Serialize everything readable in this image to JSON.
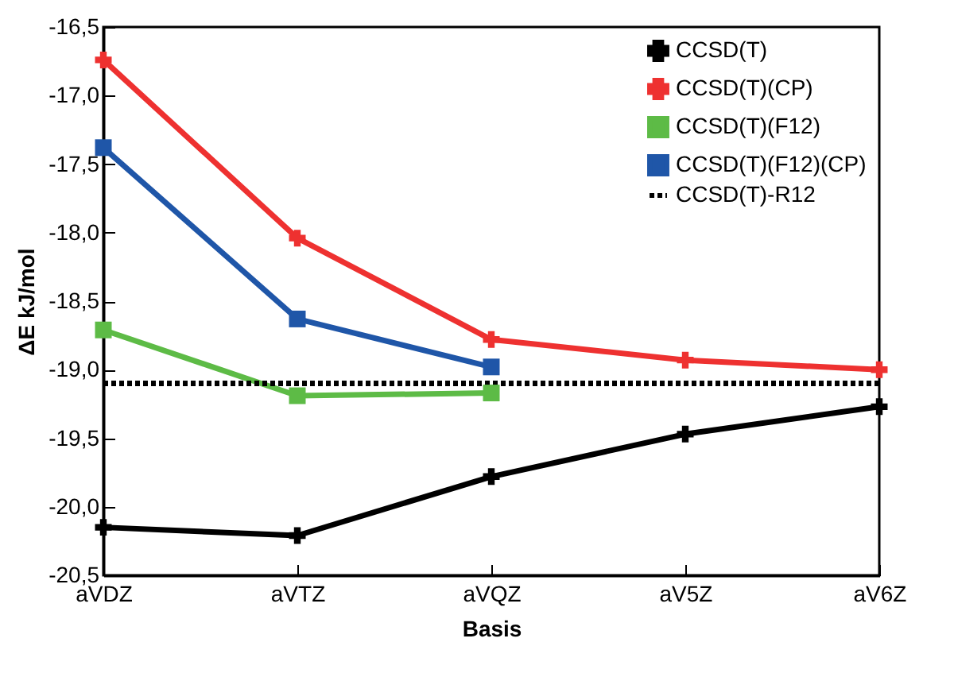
{
  "chart_data": {
    "type": "line",
    "xlabel": "Basis",
    "ylabel": "ΔE kJ/mol",
    "categories": [
      "aVDZ",
      "aVTZ",
      "aVQZ",
      "aV5Z",
      "aV6Z"
    ],
    "ylim": [
      -20.5,
      -16.5
    ],
    "yticks": [
      {
        "value": -20.5,
        "label": "-20,5"
      },
      {
        "value": -20,
        "label": "-20,0"
      },
      {
        "value": -19.5,
        "label": "-19,5"
      },
      {
        "value": -19,
        "label": "-19,0"
      },
      {
        "value": -18.5,
        "label": "-18,5"
      },
      {
        "value": -18,
        "label": "-18,0"
      },
      {
        "value": -17.5,
        "label": "-17,5"
      },
      {
        "value": -17,
        "label": "-17,0"
      },
      {
        "value": -16.5,
        "label": "-16,5"
      }
    ],
    "grid": false,
    "legend": "top right",
    "series": [
      {
        "name": "CCSD(T)",
        "color": "#000000",
        "marker": "cross",
        "line_style": "solid",
        "values": [
          -20.15,
          -20.21,
          -19.78,
          -19.47,
          -19.27
        ]
      },
      {
        "name": "CCSD(T)(CP)",
        "color": "#ee3130",
        "marker": "cross",
        "line_style": "solid",
        "values": [
          -16.74,
          -18.04,
          -18.78,
          -18.93,
          -19.0
        ]
      },
      {
        "name": "CCSD(T)(F12)",
        "color": "#5dbb46",
        "marker": "square",
        "line_style": "solid",
        "values": [
          -18.71,
          -19.19,
          -19.17,
          null,
          null
        ]
      },
      {
        "name": "CCSD(T)(F12)(CP)",
        "color": "#1f56a8",
        "marker": "square",
        "line_style": "solid",
        "values": [
          -17.38,
          -18.63,
          -18.98,
          null,
          null
        ]
      },
      {
        "name": "CCSD(T)-R12",
        "color": "#000000",
        "marker": "none",
        "line_style": "dotted",
        "values": [
          -19.1,
          -19.1,
          -19.1,
          -19.1,
          -19.1
        ]
      }
    ]
  }
}
